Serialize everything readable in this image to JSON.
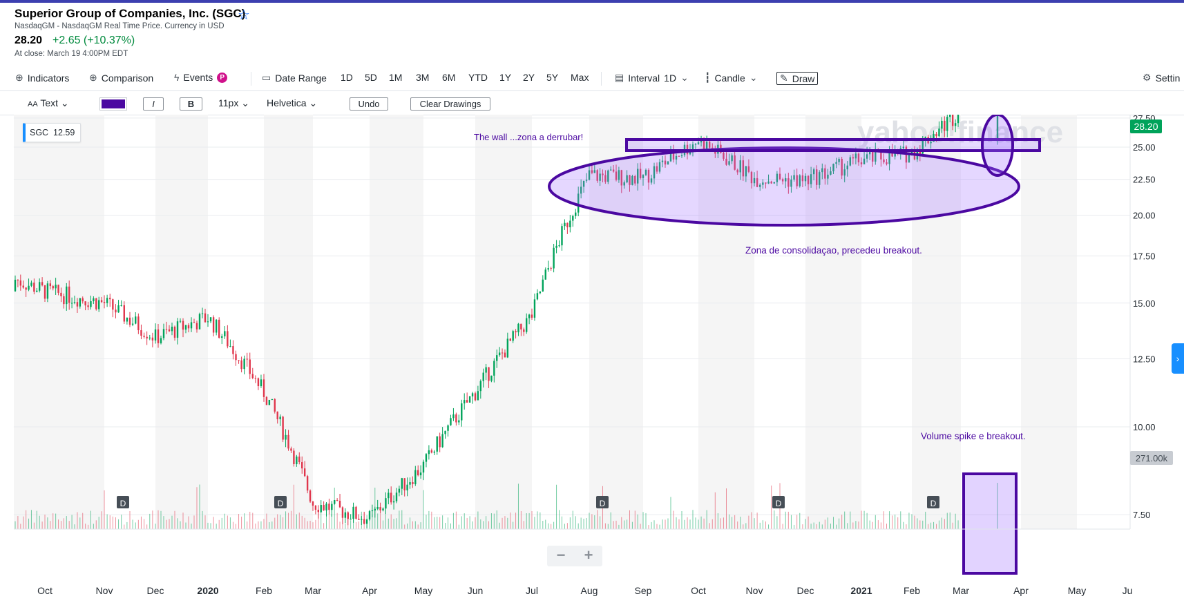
{
  "header": {
    "title": "Superior Group of Companies, Inc. (SGC)",
    "subtitle": "NasdaqGM - NasdaqGM Real Time Price. Currency in USD",
    "price": "28.20",
    "change": "+2.65 (+10.37%)",
    "close_info": "At close: March 19 4:00PM EDT"
  },
  "toolbar": {
    "indicators": "Indicators",
    "comparison": "Comparison",
    "events": "Events",
    "events_badge": "P",
    "date_range": "Date Range",
    "ranges": [
      "1D",
      "5D",
      "1M",
      "3M",
      "6M",
      "YTD",
      "1Y",
      "2Y",
      "5Y",
      "Max"
    ],
    "interval_label": "Interval",
    "interval_value": "1D",
    "candle": "Candle",
    "draw": "Draw",
    "settings": "Settin"
  },
  "drawbar": {
    "text_tool": "Text",
    "color": "#4b08a1",
    "italic": "I",
    "bold": "B",
    "font_size": "11px",
    "font": "Helvetica",
    "undo": "Undo",
    "clear": "Clear Drawings"
  },
  "legend": {
    "symbol": "SGC",
    "value": "12.59"
  },
  "annotations": {
    "wall": "The wall ...zona a derrubar!",
    "consolidation": "Zona de consolidaçao, precedeu breakout.",
    "volume": "Volume spike e breakout."
  },
  "watermark": "yahoo!finance",
  "dividend_marker": "D",
  "price_tag": "28.20",
  "volume_tag": "271.00k",
  "colors": {
    "up": "#00a35a",
    "down": "#e0364c",
    "drawing": "#4b08a1",
    "accent": "#188fff"
  },
  "chart_data": {
    "type": "candlestick",
    "y_ticks": [
      7.5,
      10.0,
      12.5,
      15.0,
      17.5,
      20.0,
      22.5,
      25.0,
      27.5
    ],
    "y_tick_labels": [
      "7.50",
      "10.00",
      "12.50",
      "15.00",
      "17.50",
      "20.00",
      "22.50",
      "25.00",
      "27.50"
    ],
    "y_scale": "log",
    "x_ticks": [
      "Oct",
      "Nov",
      "Dec",
      "2020",
      "Feb",
      "Mar",
      "Apr",
      "May",
      "Jun",
      "Jul",
      "Aug",
      "Sep",
      "Oct",
      "Nov",
      "Dec",
      "2021",
      "Feb",
      "Mar",
      "Apr",
      "May",
      "Ju"
    ],
    "last_price": 28.2,
    "last_volume": "271.00k",
    "dividends": [
      "Nov 2019",
      "Feb 2020",
      "Aug 2020",
      "Nov 2020",
      "Feb 2021"
    ],
    "approx_monthly_close": [
      {
        "month": "Oct 2019",
        "close": 15.6
      },
      {
        "month": "Nov 2019",
        "close": 15.0
      },
      {
        "month": "Dec 2019",
        "close": 13.4
      },
      {
        "month": "Jan 2020",
        "close": 14.3
      },
      {
        "month": "Feb 2020",
        "close": 11.2
      },
      {
        "month": "Mar 2020",
        "close": 7.8
      },
      {
        "month": "Apr 2020",
        "close": 7.4
      },
      {
        "month": "May 2020",
        "close": 8.8
      },
      {
        "month": "Jun 2020",
        "close": 11.2
      },
      {
        "month": "Jul 2020",
        "close": 14.4
      },
      {
        "month": "Aug 2020",
        "close": 22.8
      },
      {
        "month": "Sep 2020",
        "close": 22.6
      },
      {
        "month": "Oct 2020",
        "close": 25.6
      },
      {
        "month": "Nov 2020",
        "close": 22.6
      },
      {
        "month": "Dec 2020",
        "close": 22.4
      },
      {
        "month": "Jan 2021",
        "close": 24.0
      },
      {
        "month": "Feb 2021",
        "close": 24.5
      },
      {
        "month": "Mar 2021",
        "close": 28.2
      }
    ]
  }
}
